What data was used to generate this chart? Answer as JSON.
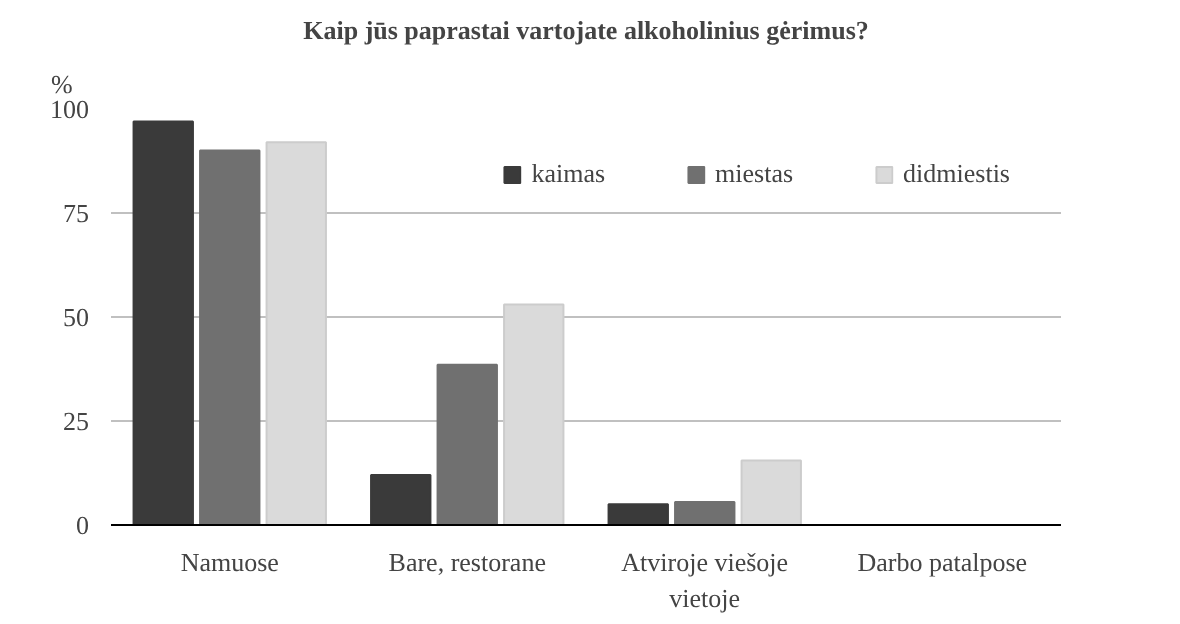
{
  "chart_data": {
    "type": "bar",
    "title": "Kaip jūs paprastai vartojate alkoholinius gėrimus?",
    "ylabel": "%",
    "categories": [
      "Namuose",
      "Bare, restorane",
      "Atviroje viešoje vietoje",
      "Darbo patalpose"
    ],
    "series": [
      {
        "name": "kaimas",
        "color": "#3a3a3a",
        "values": [
          97,
          12,
          5,
          0
        ]
      },
      {
        "name": "miestas",
        "color": "#707070",
        "values": [
          90,
          38.5,
          5.5,
          0
        ]
      },
      {
        "name": "didmiestis",
        "color": "#dadada",
        "values": [
          92,
          53,
          15.5,
          0
        ]
      }
    ],
    "ylim": [
      0,
      100
    ],
    "yticks": [
      0,
      25,
      50,
      75,
      100
    ],
    "grid": "y",
    "legend": "top right"
  }
}
